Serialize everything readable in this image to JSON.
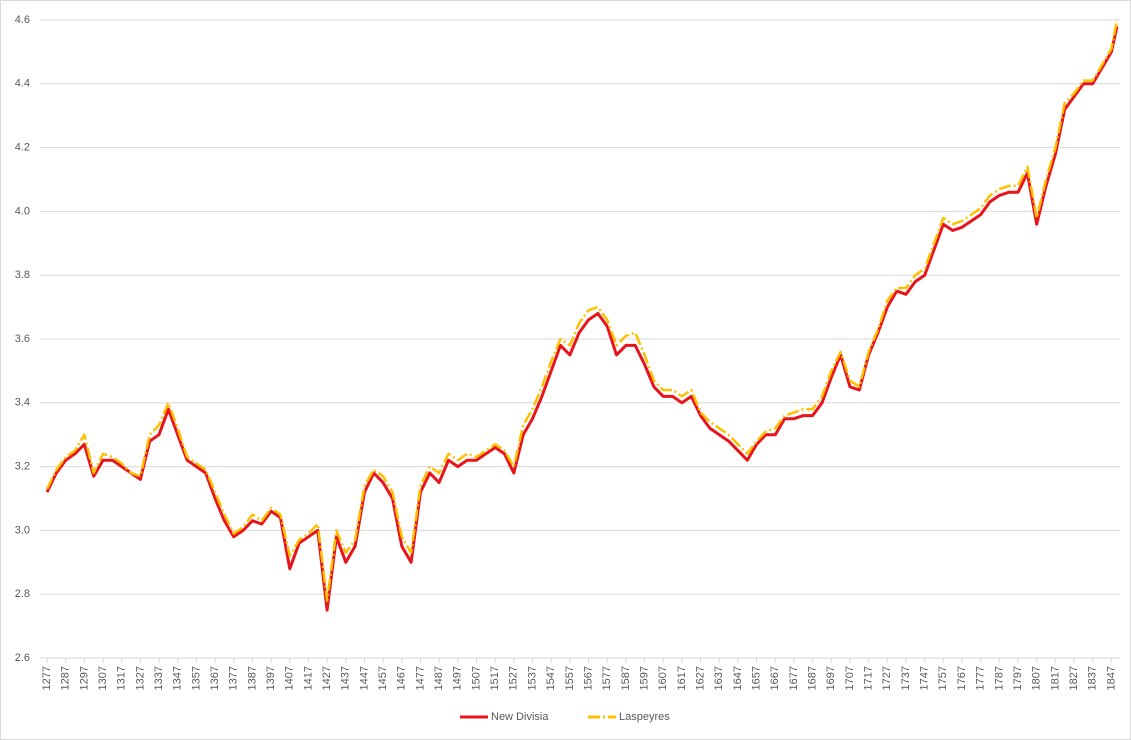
{
  "chart_data": {
    "type": "line",
    "x": [
      1277,
      1282,
      1287,
      1292,
      1297,
      1302,
      1307,
      1312,
      1317,
      1322,
      1327,
      1332,
      1337,
      1342,
      1347,
      1352,
      1357,
      1362,
      1367,
      1372,
      1377,
      1382,
      1387,
      1392,
      1397,
      1402,
      1407,
      1412,
      1417,
      1422,
      1427,
      1432,
      1437,
      1442,
      1447,
      1452,
      1457,
      1462,
      1467,
      1472,
      1477,
      1482,
      1487,
      1492,
      1497,
      1502,
      1507,
      1512,
      1517,
      1522,
      1527,
      1532,
      1537,
      1542,
      1547,
      1552,
      1557,
      1562,
      1567,
      1572,
      1577,
      1582,
      1587,
      1592,
      1597,
      1602,
      1607,
      1612,
      1617,
      1622,
      1627,
      1632,
      1637,
      1642,
      1647,
      1652,
      1657,
      1662,
      1667,
      1672,
      1677,
      1682,
      1687,
      1692,
      1697,
      1702,
      1707,
      1712,
      1717,
      1722,
      1727,
      1732,
      1737,
      1742,
      1747,
      1752,
      1757,
      1762,
      1767,
      1772,
      1777,
      1782,
      1787,
      1792,
      1797,
      1802,
      1807,
      1812,
      1817,
      1822,
      1827,
      1832,
      1837,
      1842,
      1847,
      1850
    ],
    "series": [
      {
        "name": "New Divisia",
        "color": "#e8141c",
        "dash": false,
        "values": [
          3.12,
          3.18,
          3.22,
          3.24,
          3.27,
          3.17,
          3.22,
          3.22,
          3.2,
          3.18,
          3.16,
          3.28,
          3.3,
          3.38,
          3.3,
          3.22,
          3.2,
          3.18,
          3.1,
          3.03,
          2.98,
          3.0,
          3.03,
          3.02,
          3.06,
          3.04,
          2.88,
          2.96,
          2.98,
          3.0,
          2.75,
          2.98,
          2.9,
          2.95,
          3.12,
          3.18,
          3.15,
          3.1,
          2.95,
          2.9,
          3.12,
          3.18,
          3.15,
          3.22,
          3.2,
          3.22,
          3.22,
          3.24,
          3.26,
          3.24,
          3.18,
          3.3,
          3.35,
          3.42,
          3.5,
          3.58,
          3.55,
          3.62,
          3.66,
          3.68,
          3.64,
          3.55,
          3.58,
          3.58,
          3.52,
          3.45,
          3.42,
          3.42,
          3.4,
          3.42,
          3.36,
          3.32,
          3.3,
          3.28,
          3.25,
          3.22,
          3.27,
          3.3,
          3.3,
          3.35,
          3.35,
          3.36,
          3.36,
          3.4,
          3.48,
          3.55,
          3.45,
          3.44,
          3.55,
          3.62,
          3.7,
          3.75,
          3.74,
          3.78,
          3.8,
          3.88,
          3.96,
          3.94,
          3.95,
          3.97,
          3.99,
          4.03,
          4.05,
          4.06,
          4.06,
          4.12,
          3.96,
          4.08,
          4.18,
          4.32,
          4.36,
          4.4,
          4.4,
          4.45,
          4.5,
          4.58
        ]
      },
      {
        "name": "Laspeyres",
        "color": "#ffc000",
        "dash": true,
        "values": [
          3.13,
          3.19,
          3.23,
          3.25,
          3.3,
          3.18,
          3.24,
          3.23,
          3.21,
          3.18,
          3.17,
          3.3,
          3.33,
          3.4,
          3.32,
          3.23,
          3.21,
          3.19,
          3.12,
          3.05,
          2.99,
          3.01,
          3.05,
          3.03,
          3.07,
          3.05,
          2.92,
          2.97,
          2.99,
          3.02,
          2.78,
          3.0,
          2.93,
          2.97,
          3.14,
          3.19,
          3.17,
          3.12,
          2.98,
          2.93,
          3.14,
          3.2,
          3.18,
          3.24,
          3.22,
          3.24,
          3.23,
          3.25,
          3.27,
          3.25,
          3.2,
          3.33,
          3.38,
          3.45,
          3.53,
          3.6,
          3.58,
          3.65,
          3.69,
          3.7,
          3.66,
          3.58,
          3.61,
          3.62,
          3.55,
          3.47,
          3.44,
          3.44,
          3.42,
          3.44,
          3.37,
          3.34,
          3.32,
          3.3,
          3.27,
          3.24,
          3.28,
          3.31,
          3.32,
          3.36,
          3.37,
          3.38,
          3.38,
          3.42,
          3.5,
          3.56,
          3.47,
          3.45,
          3.56,
          3.63,
          3.72,
          3.76,
          3.76,
          3.8,
          3.82,
          3.9,
          3.98,
          3.96,
          3.97,
          3.99,
          4.01,
          4.05,
          4.07,
          4.08,
          4.08,
          4.14,
          3.98,
          4.1,
          4.2,
          4.34,
          4.37,
          4.41,
          4.41,
          4.46,
          4.51,
          4.6
        ]
      }
    ],
    "xlim": [
      1277,
      1850
    ],
    "xticks": [
      1277,
      1287,
      1297,
      1307,
      1317,
      1327,
      1337,
      1347,
      1357,
      1367,
      1377,
      1387,
      1397,
      1407,
      1417,
      1427,
      1437,
      1447,
      1457,
      1467,
      1477,
      1487,
      1497,
      1507,
      1517,
      1527,
      1537,
      1547,
      1557,
      1567,
      1577,
      1587,
      1597,
      1607,
      1617,
      1627,
      1637,
      1647,
      1657,
      1667,
      1677,
      1687,
      1697,
      1707,
      1717,
      1727,
      1737,
      1747,
      1757,
      1767,
      1777,
      1787,
      1797,
      1807,
      1817,
      1827,
      1837,
      1847
    ],
    "ylim": [
      2.6,
      4.6
    ],
    "yticks": [
      2.6,
      2.8,
      {
        "value": 3,
        "label": "3.0"
      },
      3.2,
      3.4,
      3.6,
      3.8,
      {
        "value": 4,
        "label": "4.0"
      },
      4.2,
      4.4,
      4.6
    ],
    "grid": true
  }
}
